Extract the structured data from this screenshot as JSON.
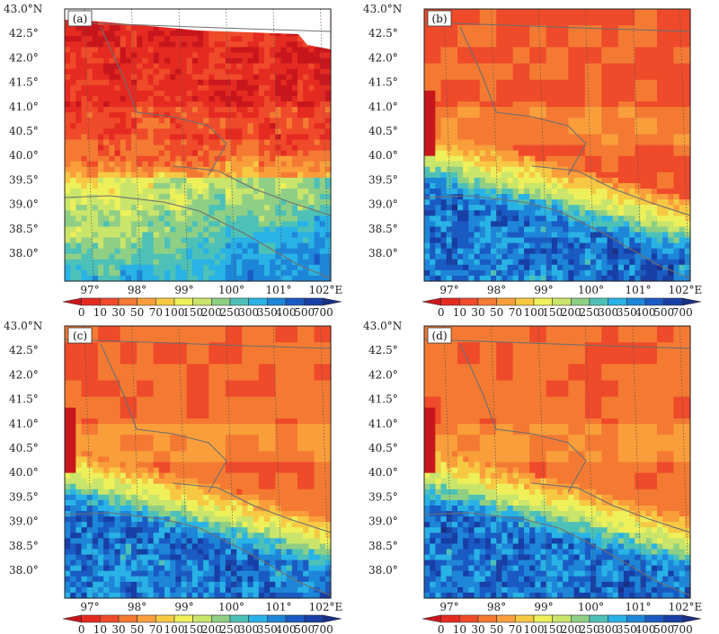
{
  "figure": {
    "panels": [
      {
        "label": "(a)",
        "variant": "a"
      },
      {
        "label": "(b)",
        "variant": "b"
      },
      {
        "label": "(c)",
        "variant": "c"
      },
      {
        "label": "(d)",
        "variant": "d"
      }
    ],
    "lat_ticks": [
      "43.0°N",
      "42.5°",
      "42.0°",
      "41.5°",
      "41.0°",
      "40.5°",
      "40.0°",
      "39.5°",
      "39.0°",
      "38.5°",
      "38.0°"
    ],
    "lon_ticks": [
      "97°",
      "98°",
      "99°",
      "100°",
      "101°",
      "102°E"
    ],
    "colorbar": {
      "levels": [
        "0",
        "10",
        "30",
        "50",
        "70",
        "100",
        "150",
        "200",
        "250",
        "300",
        "350",
        "400",
        "500",
        "700"
      ],
      "colors": [
        "#c8171c",
        "#e52a21",
        "#ef4a2a",
        "#f47a33",
        "#f99e3b",
        "#f7c943",
        "#eef05a",
        "#c9e56b",
        "#8fcf85",
        "#4dc1b8",
        "#29b2e6",
        "#1e86d8",
        "#1a5bc3",
        "#173fa6",
        "#1a2e86"
      ]
    }
  }
}
